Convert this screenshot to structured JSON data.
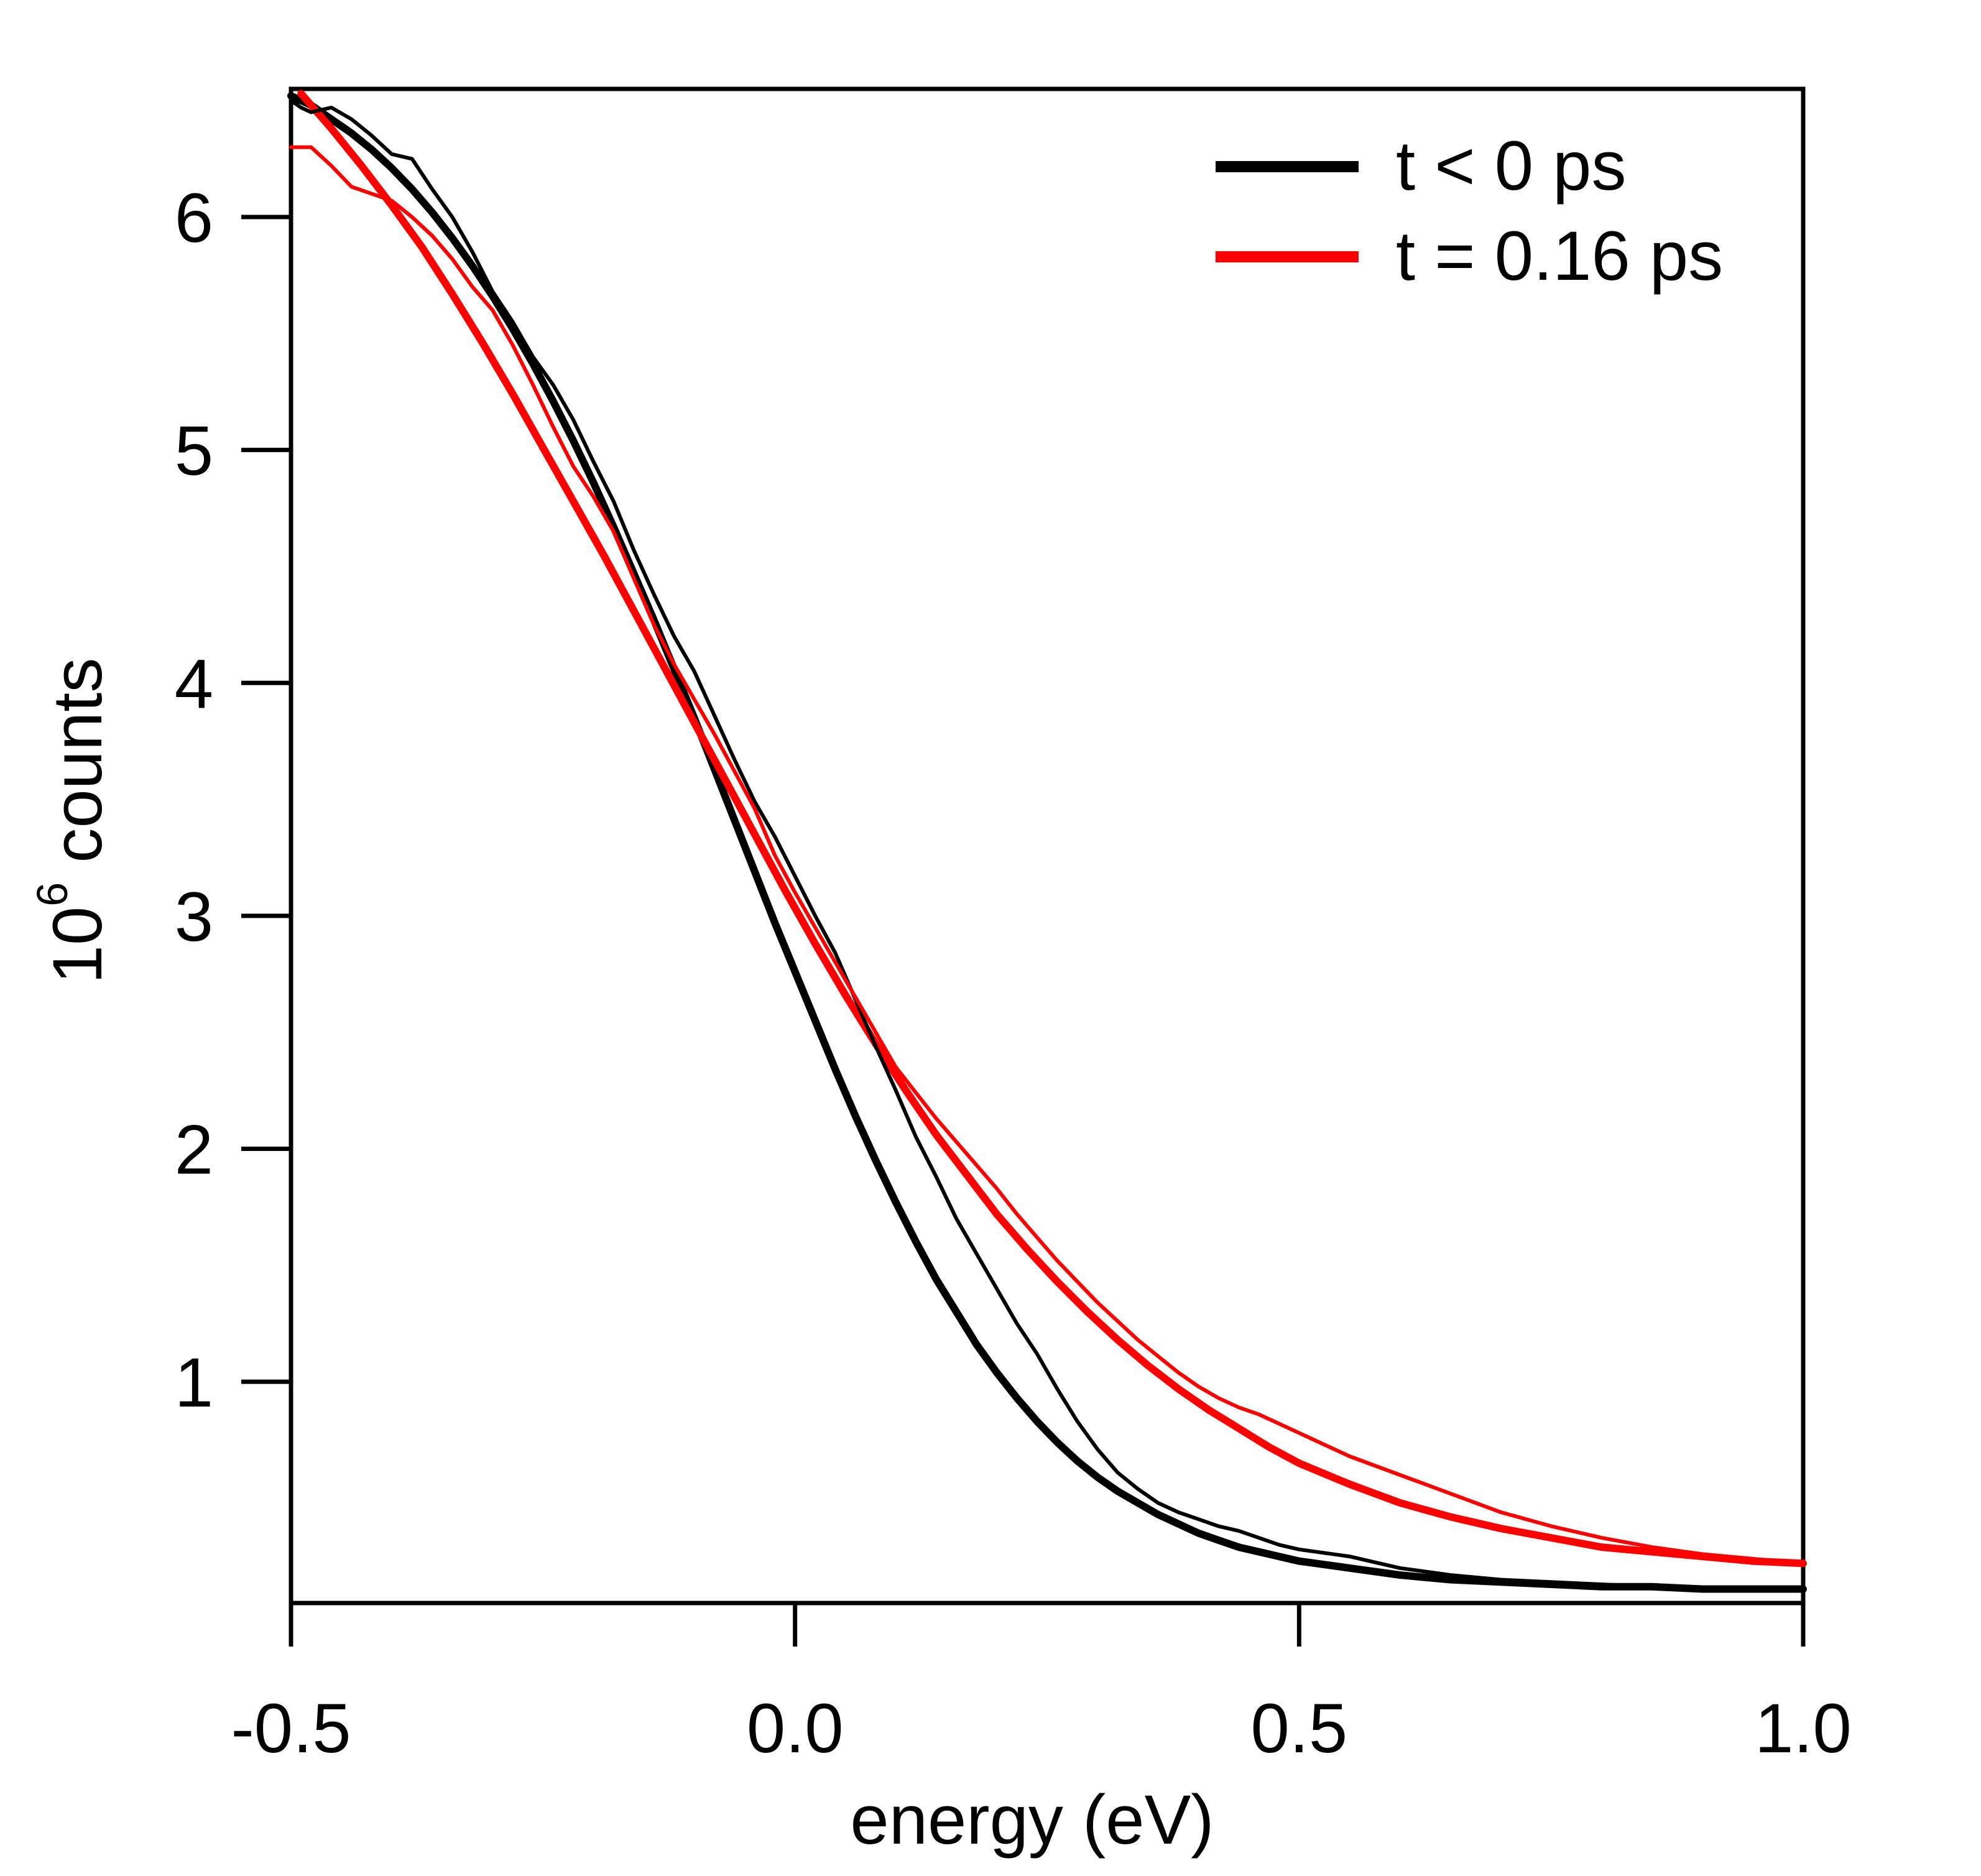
{
  "chart_data": {
    "type": "line",
    "title": "",
    "xlabel": "energy (eV)",
    "ylabel_base": "10",
    "ylabel_exp": "6",
    "ylabel_rest": " counts",
    "xlim": [
      -0.5,
      1.0
    ],
    "ylim": [
      0.05,
      6.55
    ],
    "xticks": [
      -0.5,
      0.0,
      0.5,
      1.0
    ],
    "xtick_labels": [
      "-0.5",
      "0.0",
      "0.5",
      "1.0"
    ],
    "yticks": [
      1,
      2,
      3,
      4,
      5,
      6
    ],
    "ytick_labels": [
      "1",
      "2",
      "3",
      "4",
      "5",
      "6"
    ],
    "grid": false,
    "legend_position": "top-right",
    "series": [
      {
        "name": "t < 0 ps",
        "label": "t < 0 ps",
        "color": "#000000",
        "style": "data",
        "x": [
          -0.5,
          -0.49,
          -0.48,
          -0.47,
          -0.46,
          -0.44,
          -0.42,
          -0.4,
          -0.38,
          -0.36,
          -0.34,
          -0.32,
          -0.3,
          -0.28,
          -0.26,
          -0.24,
          -0.22,
          -0.2,
          -0.18,
          -0.16,
          -0.14,
          -0.12,
          -0.1,
          -0.08,
          -0.06,
          -0.04,
          -0.02,
          0.0,
          0.02,
          0.04,
          0.06,
          0.08,
          0.1,
          0.12,
          0.14,
          0.16,
          0.18,
          0.2,
          0.22,
          0.24,
          0.26,
          0.28,
          0.3,
          0.32,
          0.34,
          0.36,
          0.38,
          0.4,
          0.42,
          0.44,
          0.46,
          0.48,
          0.5,
          0.55,
          0.6,
          0.65,
          0.7,
          0.75,
          0.8,
          0.85,
          0.9,
          0.95,
          1.0
        ],
        "y": [
          6.5,
          6.47,
          6.45,
          6.46,
          6.47,
          6.42,
          6.35,
          6.27,
          6.25,
          6.12,
          6.0,
          5.85,
          5.68,
          5.55,
          5.4,
          5.28,
          5.13,
          4.95,
          4.78,
          4.57,
          4.38,
          4.2,
          4.05,
          3.86,
          3.67,
          3.49,
          3.34,
          3.17,
          3.0,
          2.84,
          2.64,
          2.44,
          2.25,
          2.05,
          1.88,
          1.7,
          1.55,
          1.4,
          1.25,
          1.12,
          0.97,
          0.83,
          0.71,
          0.61,
          0.54,
          0.48,
          0.44,
          0.41,
          0.38,
          0.36,
          0.33,
          0.3,
          0.28,
          0.25,
          0.2,
          0.17,
          0.15,
          0.14,
          0.13,
          0.12,
          0.11,
          0.11,
          0.11
        ]
      },
      {
        "name": "t < 0 ps fit",
        "label": "",
        "color": "#000000",
        "style": "fit",
        "x": [
          -0.5,
          -0.48,
          -0.46,
          -0.44,
          -0.42,
          -0.4,
          -0.38,
          -0.36,
          -0.34,
          -0.32,
          -0.3,
          -0.28,
          -0.26,
          -0.24,
          -0.22,
          -0.2,
          -0.18,
          -0.16,
          -0.14,
          -0.12,
          -0.1,
          -0.08,
          -0.06,
          -0.04,
          -0.02,
          0.0,
          0.02,
          0.04,
          0.06,
          0.08,
          0.1,
          0.12,
          0.14,
          0.16,
          0.18,
          0.2,
          0.22,
          0.24,
          0.26,
          0.28,
          0.3,
          0.32,
          0.34,
          0.36,
          0.38,
          0.4,
          0.42,
          0.44,
          0.46,
          0.48,
          0.5,
          0.55,
          0.6,
          0.65,
          0.7,
          0.75,
          0.8,
          0.85,
          0.9,
          0.95,
          1.0
        ],
        "y": [
          6.52,
          6.48,
          6.42,
          6.36,
          6.29,
          6.21,
          6.12,
          6.02,
          5.91,
          5.79,
          5.66,
          5.52,
          5.37,
          5.21,
          5.04,
          4.86,
          4.67,
          4.47,
          4.27,
          4.06,
          3.85,
          3.63,
          3.41,
          3.19,
          2.97,
          2.76,
          2.55,
          2.34,
          2.14,
          1.95,
          1.77,
          1.6,
          1.44,
          1.3,
          1.16,
          1.04,
          0.93,
          0.83,
          0.74,
          0.66,
          0.59,
          0.53,
          0.48,
          0.43,
          0.39,
          0.35,
          0.32,
          0.29,
          0.27,
          0.25,
          0.23,
          0.2,
          0.17,
          0.15,
          0.14,
          0.13,
          0.12,
          0.12,
          0.11,
          0.11,
          0.11
        ]
      },
      {
        "name": "t = 0.16 ps",
        "label": "t = 0.16 ps",
        "color": "#ff0000",
        "style": "data",
        "x": [
          -0.5,
          -0.48,
          -0.46,
          -0.44,
          -0.42,
          -0.4,
          -0.38,
          -0.36,
          -0.34,
          -0.32,
          -0.3,
          -0.28,
          -0.26,
          -0.24,
          -0.22,
          -0.2,
          -0.18,
          -0.16,
          -0.14,
          -0.12,
          -0.1,
          -0.08,
          -0.06,
          -0.04,
          -0.02,
          0.0,
          0.02,
          0.04,
          0.06,
          0.08,
          0.1,
          0.12,
          0.14,
          0.16,
          0.18,
          0.2,
          0.22,
          0.24,
          0.26,
          0.28,
          0.3,
          0.32,
          0.34,
          0.36,
          0.38,
          0.4,
          0.42,
          0.44,
          0.46,
          0.48,
          0.5,
          0.55,
          0.6,
          0.65,
          0.7,
          0.75,
          0.8,
          0.85,
          0.9,
          0.95,
          1.0
        ],
        "y": [
          6.3,
          6.3,
          6.22,
          6.13,
          6.1,
          6.07,
          6.0,
          5.92,
          5.82,
          5.7,
          5.6,
          5.45,
          5.28,
          5.1,
          4.93,
          4.8,
          4.65,
          4.45,
          4.25,
          4.08,
          3.93,
          3.78,
          3.62,
          3.46,
          3.26,
          3.1,
          2.95,
          2.8,
          2.65,
          2.5,
          2.35,
          2.24,
          2.13,
          2.03,
          1.93,
          1.83,
          1.72,
          1.62,
          1.52,
          1.43,
          1.34,
          1.26,
          1.18,
          1.11,
          1.04,
          0.98,
          0.93,
          0.89,
          0.86,
          0.82,
          0.78,
          0.68,
          0.6,
          0.52,
          0.44,
          0.38,
          0.33,
          0.29,
          0.26,
          0.24,
          0.22
        ]
      },
      {
        "name": "t = 0.16 ps fit",
        "label": "",
        "color": "#ff0000",
        "style": "fit",
        "x": [
          -0.49,
          -0.46,
          -0.43,
          -0.4,
          -0.37,
          -0.34,
          -0.31,
          -0.28,
          -0.25,
          -0.22,
          -0.19,
          -0.16,
          -0.13,
          -0.1,
          -0.07,
          -0.04,
          -0.01,
          0.02,
          0.05,
          0.08,
          0.11,
          0.14,
          0.17,
          0.2,
          0.23,
          0.26,
          0.29,
          0.32,
          0.35,
          0.38,
          0.41,
          0.44,
          0.47,
          0.5,
          0.55,
          0.6,
          0.65,
          0.7,
          0.75,
          0.8,
          0.85,
          0.9,
          0.95,
          1.0
        ],
        "y": [
          6.53,
          6.38,
          6.22,
          6.05,
          5.87,
          5.67,
          5.46,
          5.24,
          5.01,
          4.78,
          4.55,
          4.31,
          4.07,
          3.83,
          3.59,
          3.35,
          3.11,
          2.88,
          2.66,
          2.45,
          2.25,
          2.06,
          1.89,
          1.72,
          1.57,
          1.43,
          1.3,
          1.18,
          1.07,
          0.97,
          0.88,
          0.8,
          0.72,
          0.65,
          0.56,
          0.48,
          0.42,
          0.37,
          0.33,
          0.29,
          0.27,
          0.25,
          0.23,
          0.22
        ]
      }
    ]
  }
}
